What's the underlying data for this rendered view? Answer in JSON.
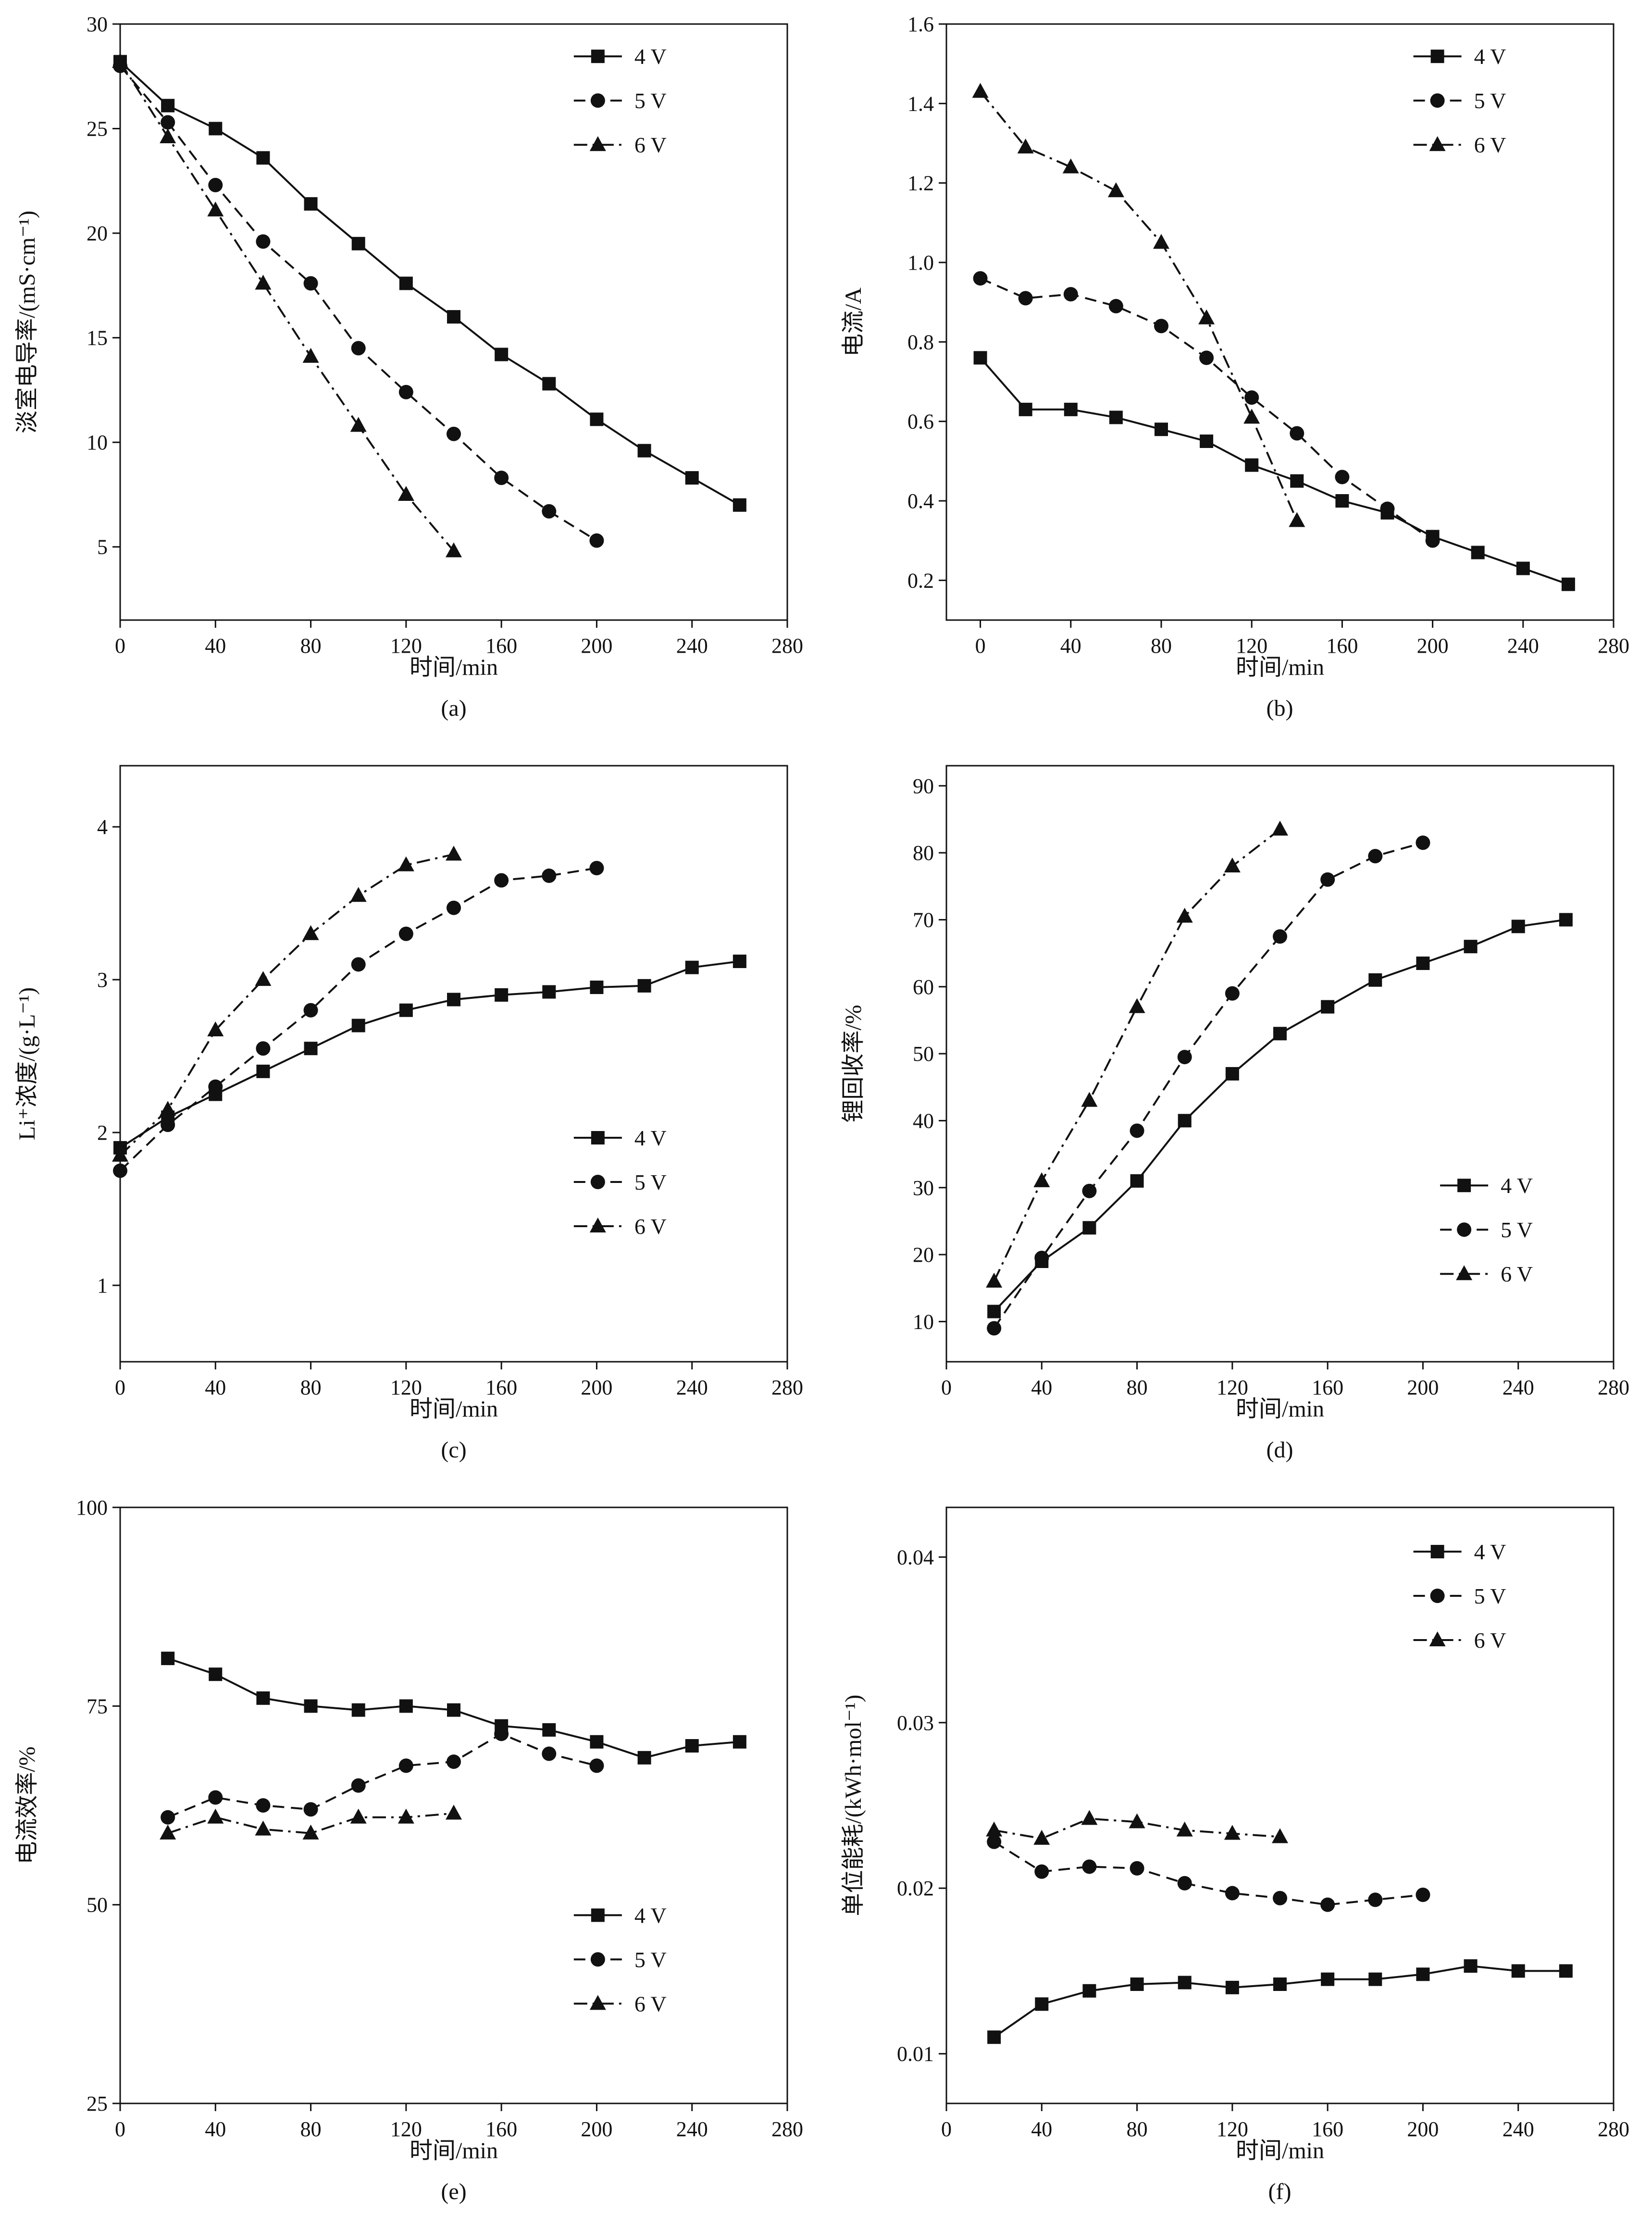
{
  "page": {
    "background": "#ffffff",
    "ink": "#111111"
  },
  "legend_labels": [
    "4 V",
    "5 V",
    "6 V"
  ],
  "chart_data": [
    {
      "id": "a",
      "type": "line",
      "caption": "(a)",
      "xlabel": "时间/min",
      "ylabel": "淡室电导率/(mS·cm⁻¹)",
      "xlim": [
        0,
        280
      ],
      "ylim": [
        1.5,
        30
      ],
      "xticks": [
        0,
        40,
        80,
        120,
        160,
        200,
        240,
        280
      ],
      "xtick_labels": [
        "0",
        "40",
        "80",
        "120",
        "160",
        "200",
        "240",
        "280"
      ],
      "yticks": [
        5,
        10,
        15,
        20,
        25,
        30
      ],
      "ytick_labels": [
        "5",
        "10",
        "15",
        "20",
        "25",
        "30"
      ],
      "legend": {
        "x": 0.68,
        "y": 0.03
      },
      "series": [
        {
          "name": "4 V",
          "marker": "square",
          "line": "solid",
          "x": [
            0,
            20,
            40,
            60,
            80,
            100,
            120,
            140,
            160,
            180,
            200,
            220,
            240,
            260
          ],
          "y": [
            28.2,
            26.1,
            25.0,
            23.6,
            21.4,
            19.5,
            17.6,
            16.0,
            14.2,
            12.8,
            11.1,
            9.6,
            8.3,
            7.0
          ]
        },
        {
          "name": "5 V",
          "marker": "circle",
          "line": "dashed",
          "x": [
            0,
            20,
            40,
            60,
            80,
            100,
            120,
            140,
            160,
            180,
            200
          ],
          "y": [
            28.0,
            25.3,
            22.3,
            19.6,
            17.6,
            14.5,
            12.4,
            10.4,
            8.3,
            6.7,
            5.3
          ]
        },
        {
          "name": "6 V",
          "marker": "triangle",
          "line": "dashdot",
          "x": [
            0,
            20,
            40,
            60,
            80,
            100,
            120,
            140
          ],
          "y": [
            28.2,
            24.6,
            21.1,
            17.6,
            14.1,
            10.8,
            7.5,
            4.8
          ]
        }
      ]
    },
    {
      "id": "b",
      "type": "line",
      "caption": "(b)",
      "xlabel": "时间/min",
      "ylabel": "电流/A",
      "xlim": [
        -15,
        280
      ],
      "ylim": [
        0.1,
        1.6
      ],
      "xticks": [
        0,
        40,
        80,
        120,
        160,
        200,
        240,
        280
      ],
      "xtick_labels": [
        "0",
        "40",
        "80",
        "120",
        "160",
        "200",
        "240",
        "280"
      ],
      "yticks": [
        0.2,
        0.4,
        0.6,
        0.8,
        1.0,
        1.2,
        1.4,
        1.6
      ],
      "ytick_labels": [
        "0.2",
        "0.4",
        "0.6",
        "0.8",
        "1.0",
        "1.2",
        "1.4",
        "1.6"
      ],
      "legend": {
        "x": 0.7,
        "y": 0.03
      },
      "series": [
        {
          "name": "4 V",
          "marker": "square",
          "line": "solid",
          "x": [
            0,
            20,
            40,
            60,
            80,
            100,
            120,
            140,
            160,
            180,
            200,
            220,
            240,
            260
          ],
          "y": [
            0.76,
            0.63,
            0.63,
            0.61,
            0.58,
            0.55,
            0.49,
            0.45,
            0.4,
            0.37,
            0.31,
            0.27,
            0.23,
            0.19
          ]
        },
        {
          "name": "5 V",
          "marker": "circle",
          "line": "dashed",
          "x": [
            0,
            20,
            40,
            60,
            80,
            100,
            120,
            140,
            160,
            180,
            200
          ],
          "y": [
            0.96,
            0.91,
            0.92,
            0.89,
            0.84,
            0.76,
            0.66,
            0.57,
            0.46,
            0.38,
            0.3
          ]
        },
        {
          "name": "6 V",
          "marker": "triangle",
          "line": "dashdot",
          "x": [
            0,
            20,
            40,
            60,
            80,
            100,
            120,
            140
          ],
          "y": [
            1.43,
            1.29,
            1.24,
            1.18,
            1.05,
            0.86,
            0.61,
            0.35
          ]
        }
      ]
    },
    {
      "id": "c",
      "type": "line",
      "caption": "(c)",
      "xlabel": "时间/min",
      "ylabel": "Li⁺浓度/(g·L⁻¹)",
      "xlim": [
        0,
        280
      ],
      "ylim": [
        0.5,
        4.4
      ],
      "xticks": [
        0,
        40,
        80,
        120,
        160,
        200,
        240,
        280
      ],
      "xtick_labels": [
        "0",
        "40",
        "80",
        "120",
        "160",
        "200",
        "240",
        "280"
      ],
      "yticks": [
        1,
        2,
        3,
        4
      ],
      "ytick_labels": [
        "1",
        "2",
        "3",
        "4"
      ],
      "legend": {
        "x": 0.68,
        "y": 0.6
      },
      "series": [
        {
          "name": "4 V",
          "marker": "square",
          "line": "solid",
          "x": [
            0,
            20,
            40,
            60,
            80,
            100,
            120,
            140,
            160,
            180,
            200,
            220,
            240,
            260
          ],
          "y": [
            1.9,
            2.1,
            2.25,
            2.4,
            2.55,
            2.7,
            2.8,
            2.87,
            2.9,
            2.92,
            2.95,
            2.96,
            3.08,
            3.12
          ]
        },
        {
          "name": "5 V",
          "marker": "circle",
          "line": "dashed",
          "x": [
            0,
            20,
            40,
            60,
            80,
            100,
            120,
            140,
            160,
            180,
            200
          ],
          "y": [
            1.75,
            2.05,
            2.3,
            2.55,
            2.8,
            3.1,
            3.3,
            3.47,
            3.65,
            3.68,
            3.73
          ]
        },
        {
          "name": "6 V",
          "marker": "triangle",
          "line": "dashdot",
          "x": [
            0,
            20,
            40,
            60,
            80,
            100,
            120,
            140
          ],
          "y": [
            1.85,
            2.15,
            2.67,
            3.0,
            3.3,
            3.55,
            3.75,
            3.82
          ]
        }
      ]
    },
    {
      "id": "d",
      "type": "line",
      "caption": "(d)",
      "xlabel": "时间/min",
      "ylabel": "锂回收率/%",
      "xlim": [
        0,
        280
      ],
      "ylim": [
        4,
        93
      ],
      "xticks": [
        0,
        40,
        80,
        120,
        160,
        200,
        240,
        280
      ],
      "xtick_labels": [
        "0",
        "40",
        "80",
        "120",
        "160",
        "200",
        "240",
        "280"
      ],
      "yticks": [
        10,
        20,
        30,
        40,
        50,
        60,
        70,
        80,
        90
      ],
      "ytick_labels": [
        "10",
        "20",
        "30",
        "40",
        "50",
        "60",
        "70",
        "80",
        "90"
      ],
      "legend": {
        "x": 0.74,
        "y": 0.68
      },
      "series": [
        {
          "name": "4 V",
          "marker": "square",
          "line": "solid",
          "x": [
            20,
            40,
            60,
            80,
            100,
            120,
            140,
            160,
            180,
            200,
            220,
            240,
            260
          ],
          "y": [
            11.5,
            19,
            24,
            31,
            40,
            47,
            53,
            57,
            61,
            63.5,
            66,
            69,
            70
          ]
        },
        {
          "name": "5 V",
          "marker": "circle",
          "line": "dashed",
          "x": [
            20,
            40,
            60,
            80,
            100,
            120,
            140,
            160,
            180,
            200
          ],
          "y": [
            9,
            19.5,
            29.5,
            38.5,
            49.5,
            59,
            67.5,
            76,
            79.5,
            81.5
          ]
        },
        {
          "name": "6 V",
          "marker": "triangle",
          "line": "dashdot",
          "x": [
            20,
            40,
            60,
            80,
            100,
            120,
            140
          ],
          "y": [
            16,
            31,
            43,
            57,
            70.5,
            78,
            83.5
          ]
        }
      ]
    },
    {
      "id": "e",
      "type": "line",
      "caption": "(e)",
      "xlabel": "时间/min",
      "ylabel": "电流效率/%",
      "xlim": [
        0,
        280
      ],
      "ylim": [
        25,
        100
      ],
      "xticks": [
        0,
        40,
        80,
        120,
        160,
        200,
        240,
        280
      ],
      "xtick_labels": [
        "0",
        "40",
        "80",
        "120",
        "160",
        "200",
        "240",
        "280"
      ],
      "yticks": [
        25,
        50,
        75,
        100
      ],
      "ytick_labels": [
        "25",
        "50",
        "75",
        "100"
      ],
      "legend": {
        "x": 0.68,
        "y": 0.66
      },
      "series": [
        {
          "name": "4 V",
          "marker": "square",
          "line": "solid",
          "x": [
            20,
            40,
            60,
            80,
            100,
            120,
            140,
            160,
            180,
            200,
            220,
            240,
            260
          ],
          "y": [
            81,
            79,
            76,
            75,
            74.5,
            75,
            74.5,
            72.5,
            72,
            70.5,
            68.5,
            70,
            70.5
          ]
        },
        {
          "name": "5 V",
          "marker": "circle",
          "line": "dashed",
          "x": [
            20,
            40,
            60,
            80,
            100,
            120,
            140,
            160,
            180,
            200
          ],
          "y": [
            61,
            63.5,
            62.5,
            62,
            65,
            67.5,
            68,
            71.5,
            69,
            67.5
          ]
        },
        {
          "name": "6 V",
          "marker": "triangle",
          "line": "dashdot",
          "x": [
            20,
            40,
            60,
            80,
            100,
            120,
            140
          ],
          "y": [
            59,
            61,
            59.5,
            59,
            61,
            61,
            61.5
          ]
        }
      ]
    },
    {
      "id": "f",
      "type": "line",
      "caption": "(f)",
      "xlabel": "时间/min",
      "ylabel": "单位能耗/(kWh·mol⁻¹)",
      "xlim": [
        0,
        280
      ],
      "ylim": [
        0.007,
        0.043
      ],
      "xticks": [
        0,
        40,
        80,
        120,
        160,
        200,
        240,
        280
      ],
      "xtick_labels": [
        "0",
        "40",
        "80",
        "120",
        "160",
        "200",
        "240",
        "280"
      ],
      "yticks": [
        0.01,
        0.02,
        0.03,
        0.04
      ],
      "ytick_labels": [
        "0.01",
        "0.02",
        "0.03",
        "0.04"
      ],
      "legend": {
        "x": 0.7,
        "y": 0.05
      },
      "series": [
        {
          "name": "4 V",
          "marker": "square",
          "line": "solid",
          "x": [
            20,
            40,
            60,
            80,
            100,
            120,
            140,
            160,
            180,
            200,
            220,
            240,
            260
          ],
          "y": [
            0.011,
            0.013,
            0.0138,
            0.0142,
            0.0143,
            0.014,
            0.0142,
            0.0145,
            0.0145,
            0.0148,
            0.0153,
            0.015,
            0.015
          ]
        },
        {
          "name": "5 V",
          "marker": "circle",
          "line": "dashed",
          "x": [
            20,
            40,
            60,
            80,
            100,
            120,
            140,
            160,
            180,
            200
          ],
          "y": [
            0.0228,
            0.021,
            0.0213,
            0.0212,
            0.0203,
            0.0197,
            0.0194,
            0.019,
            0.0193,
            0.0196
          ]
        },
        {
          "name": "6 V",
          "marker": "triangle",
          "line": "dashdot",
          "x": [
            20,
            40,
            60,
            80,
            100,
            120,
            140
          ],
          "y": [
            0.0235,
            0.023,
            0.0242,
            0.024,
            0.0235,
            0.0233,
            0.0231
          ]
        }
      ]
    }
  ]
}
